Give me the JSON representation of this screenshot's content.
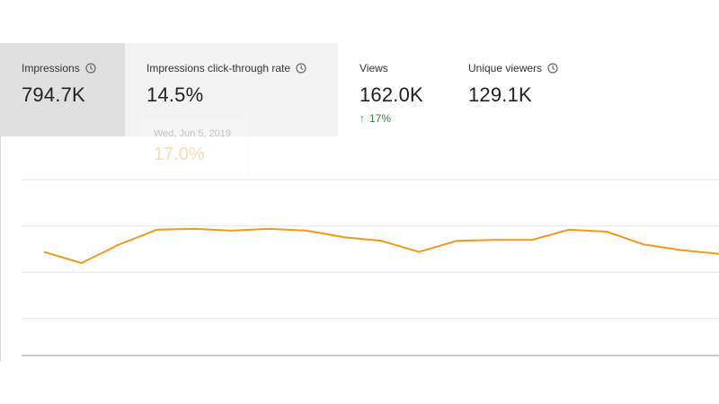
{
  "metrics": [
    {
      "label": "Impressions",
      "value": "794.7K",
      "help_icon": "clock-icon"
    },
    {
      "label": "Impressions click-through rate",
      "value": "14.5%",
      "help_icon": "clock-icon"
    },
    {
      "label": "Views",
      "value": "162.0K",
      "delta": "17%",
      "delta_direction": "up"
    },
    {
      "label": "Unique viewers",
      "value": "129.1K",
      "help_icon": "clock-icon"
    }
  ],
  "tooltip": {
    "date": "Wed, Jun 5, 2019",
    "value": "17.0%"
  },
  "colors": {
    "line": "#f09a1a",
    "selected_tab": "#e0e0e0",
    "secondary_tab": "#f3f3f3",
    "positive": "#2e8b2e",
    "grid": "#e6e6e6"
  },
  "chart_data": {
    "type": "line",
    "title": "",
    "xlabel": "",
    "ylabel": "",
    "grid": true,
    "ylim": [
      0,
      1
    ],
    "series": [
      {
        "values": [
          0.56,
          0.5,
          0.6,
          0.68,
          0.685,
          0.675,
          0.685,
          0.675,
          0.64,
          0.62,
          0.56,
          0.62,
          0.625,
          0.625,
          0.68,
          0.67,
          0.6,
          0.57,
          0.55
        ]
      }
    ]
  }
}
